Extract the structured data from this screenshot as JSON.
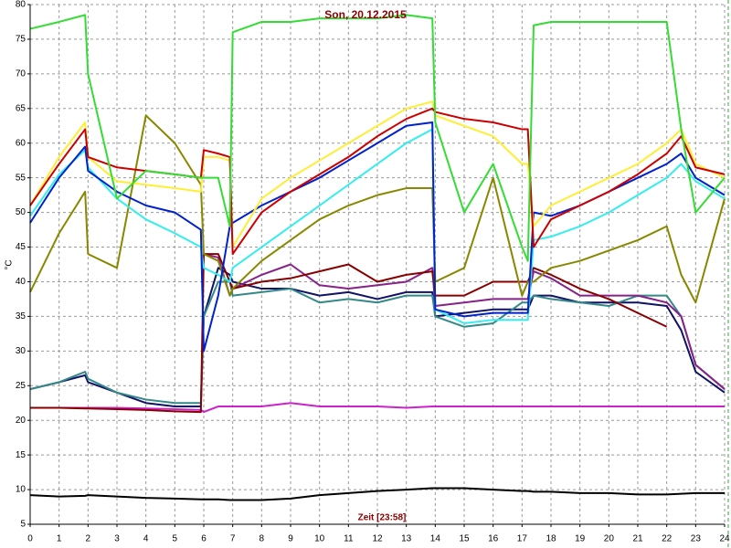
{
  "chart_data": {
    "type": "line",
    "title": "Son, 20.12.2015",
    "xlabel": "Zeit [23:58]",
    "ylabel": "°C",
    "x": [
      0,
      1,
      1.9,
      2,
      3,
      4,
      5,
      5.9,
      6,
      6.5,
      6.9,
      7,
      8,
      9,
      10,
      11,
      12,
      13,
      13.9,
      14,
      15,
      16,
      17,
      17.2,
      17.4,
      18,
      19,
      20,
      21,
      22,
      22.5,
      23,
      24
    ],
    "xlim": [
      0,
      24
    ],
    "xticks": [
      0,
      1,
      2,
      3,
      4,
      5,
      6,
      7,
      8,
      9,
      10,
      11,
      12,
      13,
      14,
      15,
      16,
      17,
      18,
      19,
      20,
      21,
      22,
      23,
      24
    ],
    "ylim": [
      5,
      80
    ],
    "yticks": [
      5,
      10,
      15,
      20,
      25,
      30,
      35,
      40,
      45,
      50,
      55,
      60,
      65,
      70,
      75,
      80
    ],
    "grid": true,
    "series": [
      {
        "color": "#000000",
        "values": [
          9.2,
          9,
          9.1,
          9.2,
          9,
          8.8,
          8.7,
          8.6,
          8.6,
          8.6,
          8.5,
          8.5,
          8.5,
          8.7,
          9.2,
          9.5,
          9.8,
          10,
          10.2,
          10.2,
          10.2,
          10,
          9.8,
          9.8,
          9.7,
          9.7,
          9.5,
          9.5,
          9.3,
          9.3,
          9.4,
          9.5,
          9.5
        ]
      },
      {
        "color": "#cc22cc",
        "values": [
          21.8,
          21.8,
          21.8,
          21.8,
          21.8,
          21.7,
          21.6,
          21.5,
          21.2,
          22,
          22,
          22,
          22,
          22.5,
          22,
          22,
          22,
          21.8,
          22,
          22,
          22,
          22,
          22,
          22,
          22,
          22,
          22,
          22,
          22,
          22,
          22,
          22,
          22
        ]
      },
      {
        "color": "#111166",
        "values": [
          24.5,
          25.5,
          26.5,
          25.5,
          24,
          22.5,
          22,
          22,
          35,
          42,
          41,
          40,
          39,
          39,
          38,
          38.5,
          37.5,
          38.5,
          38.5,
          35,
          35.5,
          36,
          36,
          36,
          38,
          38,
          37,
          37,
          37,
          36.5,
          33,
          27,
          24
        ]
      },
      {
        "color": "#338888",
        "values": [
          24.5,
          25.5,
          27,
          26,
          24,
          23,
          22.5,
          22.5,
          35,
          40,
          40,
          38,
          38.5,
          39,
          37,
          37.5,
          37,
          38,
          38,
          35,
          33.5,
          34,
          37,
          37,
          38,
          37.5,
          37,
          36.5,
          38,
          38,
          35,
          28,
          24.5
        ]
      },
      {
        "color": "#882288",
        "values": [
          null,
          null,
          null,
          null,
          null,
          null,
          null,
          null,
          44,
          43.5,
          38,
          39,
          41,
          42.5,
          39.5,
          39,
          39.5,
          40,
          42,
          36.5,
          37,
          37.5,
          37.5,
          37.5,
          41.5,
          40.5,
          38,
          38,
          38,
          37,
          35,
          28,
          24.5
        ]
      },
      {
        "color": "#880000",
        "values": [
          21.8,
          21.8,
          21.7,
          21.7,
          21.6,
          21.5,
          21.3,
          21.2,
          44,
          44,
          40,
          39,
          40,
          40.5,
          41.5,
          42.5,
          40,
          41,
          41.5,
          38,
          38,
          40,
          40,
          40,
          42,
          41,
          39,
          37.5,
          35.5,
          33.5,
          null,
          null,
          null
        ]
      },
      {
        "color": "#888800",
        "values": [
          38.5,
          47,
          53,
          44,
          42,
          64,
          60,
          54,
          44,
          43,
          38,
          39,
          43,
          46,
          49,
          51,
          52.5,
          53.5,
          53.5,
          40,
          42,
          55,
          38,
          40,
          40,
          42,
          43,
          44.5,
          46,
          48,
          41,
          37,
          52
        ]
      },
      {
        "color": "#33eeee",
        "values": [
          49.5,
          55.5,
          59,
          56.5,
          52,
          49,
          47,
          45,
          42,
          41,
          40,
          42,
          45,
          48,
          51,
          54,
          57,
          60,
          62,
          36,
          34,
          34.5,
          34.5,
          34.5,
          46,
          46.5,
          48,
          50,
          52.5,
          55,
          57,
          54.5,
          52
        ]
      },
      {
        "color": "#0022cc",
        "values": [
          48.5,
          55,
          59.5,
          56,
          53,
          51,
          50,
          47.5,
          30,
          38,
          48,
          48.5,
          51,
          53,
          55,
          57.5,
          60,
          62.5,
          63,
          36,
          35,
          35.5,
          35.5,
          35.5,
          50,
          49.5,
          51,
          53,
          55,
          57,
          58.5,
          55,
          52.5
        ]
      },
      {
        "color": "#ffee33",
        "values": [
          51,
          58,
          63,
          58,
          54.5,
          54,
          53.5,
          53,
          58,
          58,
          57.5,
          45,
          52,
          55,
          57.5,
          60,
          62.5,
          65,
          66,
          64,
          62.5,
          61,
          57,
          57,
          48,
          51,
          53,
          55,
          57,
          60,
          62,
          57,
          55
        ]
      },
      {
        "color": "#cc0000",
        "values": [
          51,
          57,
          62,
          58,
          56.5,
          56,
          55.5,
          55,
          59,
          58.5,
          58,
          44,
          50,
          53,
          55.5,
          58,
          61,
          63.5,
          65,
          64.5,
          63.5,
          63,
          62,
          62,
          45,
          49,
          51,
          53,
          55.5,
          58.5,
          61,
          56.5,
          55.5
        ]
      },
      {
        "color": "#33dd33",
        "values": [
          76.5,
          77.5,
          78.5,
          70,
          52,
          56,
          55.5,
          55,
          55,
          55,
          48,
          76,
          77.5,
          77.5,
          78,
          78,
          78,
          78.5,
          78,
          63,
          50,
          57,
          45,
          43,
          77,
          77.5,
          77.5,
          77.5,
          77.5,
          77.5,
          62,
          50,
          55
        ]
      }
    ]
  }
}
